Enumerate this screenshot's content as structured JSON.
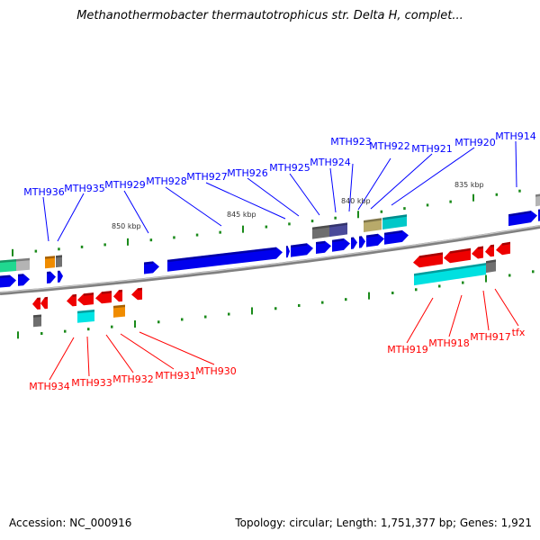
{
  "title": "Methanothermobacter thermautotrophicus str. Delta H, complet...",
  "footer": {
    "accession": "Accession: NC_000916",
    "summary": "Topology: circular; Length: 1,751,377 bp; Genes: 1,921"
  },
  "scale_labels": [
    "850 kbp",
    "845 kbp",
    "840 kbp",
    "835 kbp"
  ],
  "forward_labels": [
    "MTH936",
    "MTH935",
    "MTH929",
    "MTH928",
    "MTH927",
    "MTH926",
    "MTH925",
    "MTH924",
    "MTH923",
    "MTH922",
    "MTH921",
    "MTH920",
    "MTH914"
  ],
  "reverse_labels": [
    "MTH934",
    "MTH933",
    "MTH932",
    "MTH931",
    "MTH930",
    "MTH919",
    "MTH918",
    "MTH917",
    "tfx"
  ],
  "colors": {
    "forward": "#0000ff",
    "reverse": "#ff0000",
    "backbone": "#808080",
    "ticks": "#1a8a1a"
  }
}
